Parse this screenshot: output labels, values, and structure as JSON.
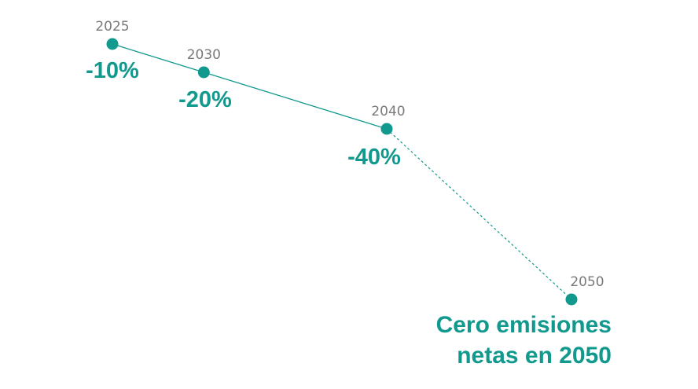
{
  "colors": {
    "accent": "#12998e",
    "year_label": "#7a7a7a"
  },
  "chart_data": {
    "type": "line",
    "x": [
      2025,
      2030,
      2040,
      2050
    ],
    "year_labels": [
      "2025",
      "2030",
      "2040",
      "2050"
    ],
    "values": [
      -10,
      -20,
      -40,
      -100
    ],
    "value_labels": [
      "-10%",
      "-20%",
      "-40%",
      ""
    ],
    "solid_segment": [
      2025,
      2040
    ],
    "dashed_segment": [
      2040,
      2050
    ],
    "final_annotation": {
      "line1": "Cero emisiones",
      "line2": "netas en 2050"
    },
    "title": "",
    "xlabel": "",
    "ylabel": "",
    "grid": false,
    "axes_visible": false
  }
}
